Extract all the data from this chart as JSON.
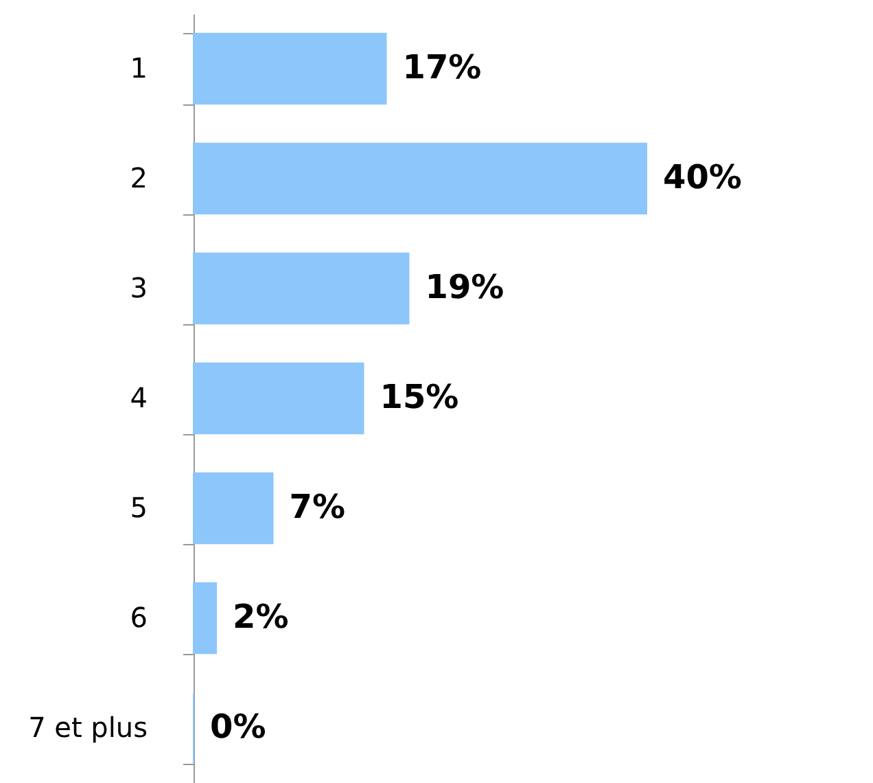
{
  "chart_data": {
    "type": "bar",
    "orientation": "horizontal",
    "categories": [
      "1",
      "2",
      "3",
      "4",
      "5",
      "6",
      "7 et plus"
    ],
    "values": [
      17,
      40,
      19,
      15,
      7,
      2,
      0
    ],
    "value_labels": [
      "17%",
      "40%",
      "19%",
      "15%",
      "7%",
      "2%",
      "0%"
    ],
    "color": "#8cc6fb",
    "grid": false
  }
}
